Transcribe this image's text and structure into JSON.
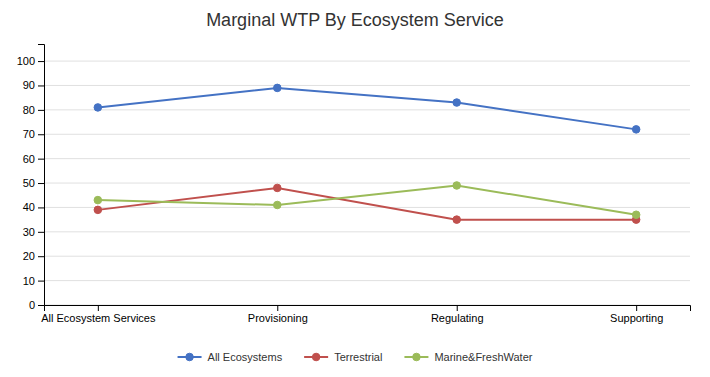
{
  "chart_data": {
    "type": "line",
    "title": "Marginal WTP By Ecosystem Service",
    "categories": [
      "All Ecosystem Services",
      "Provisioning",
      "Regulating",
      "Supporting"
    ],
    "series": [
      {
        "name": "All Ecosystems",
        "color": "#4472C4",
        "marker": "circle",
        "values": [
          81,
          89,
          83,
          72
        ]
      },
      {
        "name": "Terrestrial",
        "color": "#C0504D",
        "marker": "circle",
        "values": [
          39,
          48,
          35,
          35
        ]
      },
      {
        "name": "Marine&FreshWater",
        "color": "#9BBB59",
        "marker": "circle",
        "values": [
          43,
          41,
          49,
          37
        ]
      }
    ],
    "ylim": [
      0,
      107
    ],
    "yticks": [
      0,
      10,
      20,
      30,
      40,
      50,
      60,
      70,
      80,
      90,
      100
    ],
    "grid": true,
    "legend": "bottom"
  }
}
